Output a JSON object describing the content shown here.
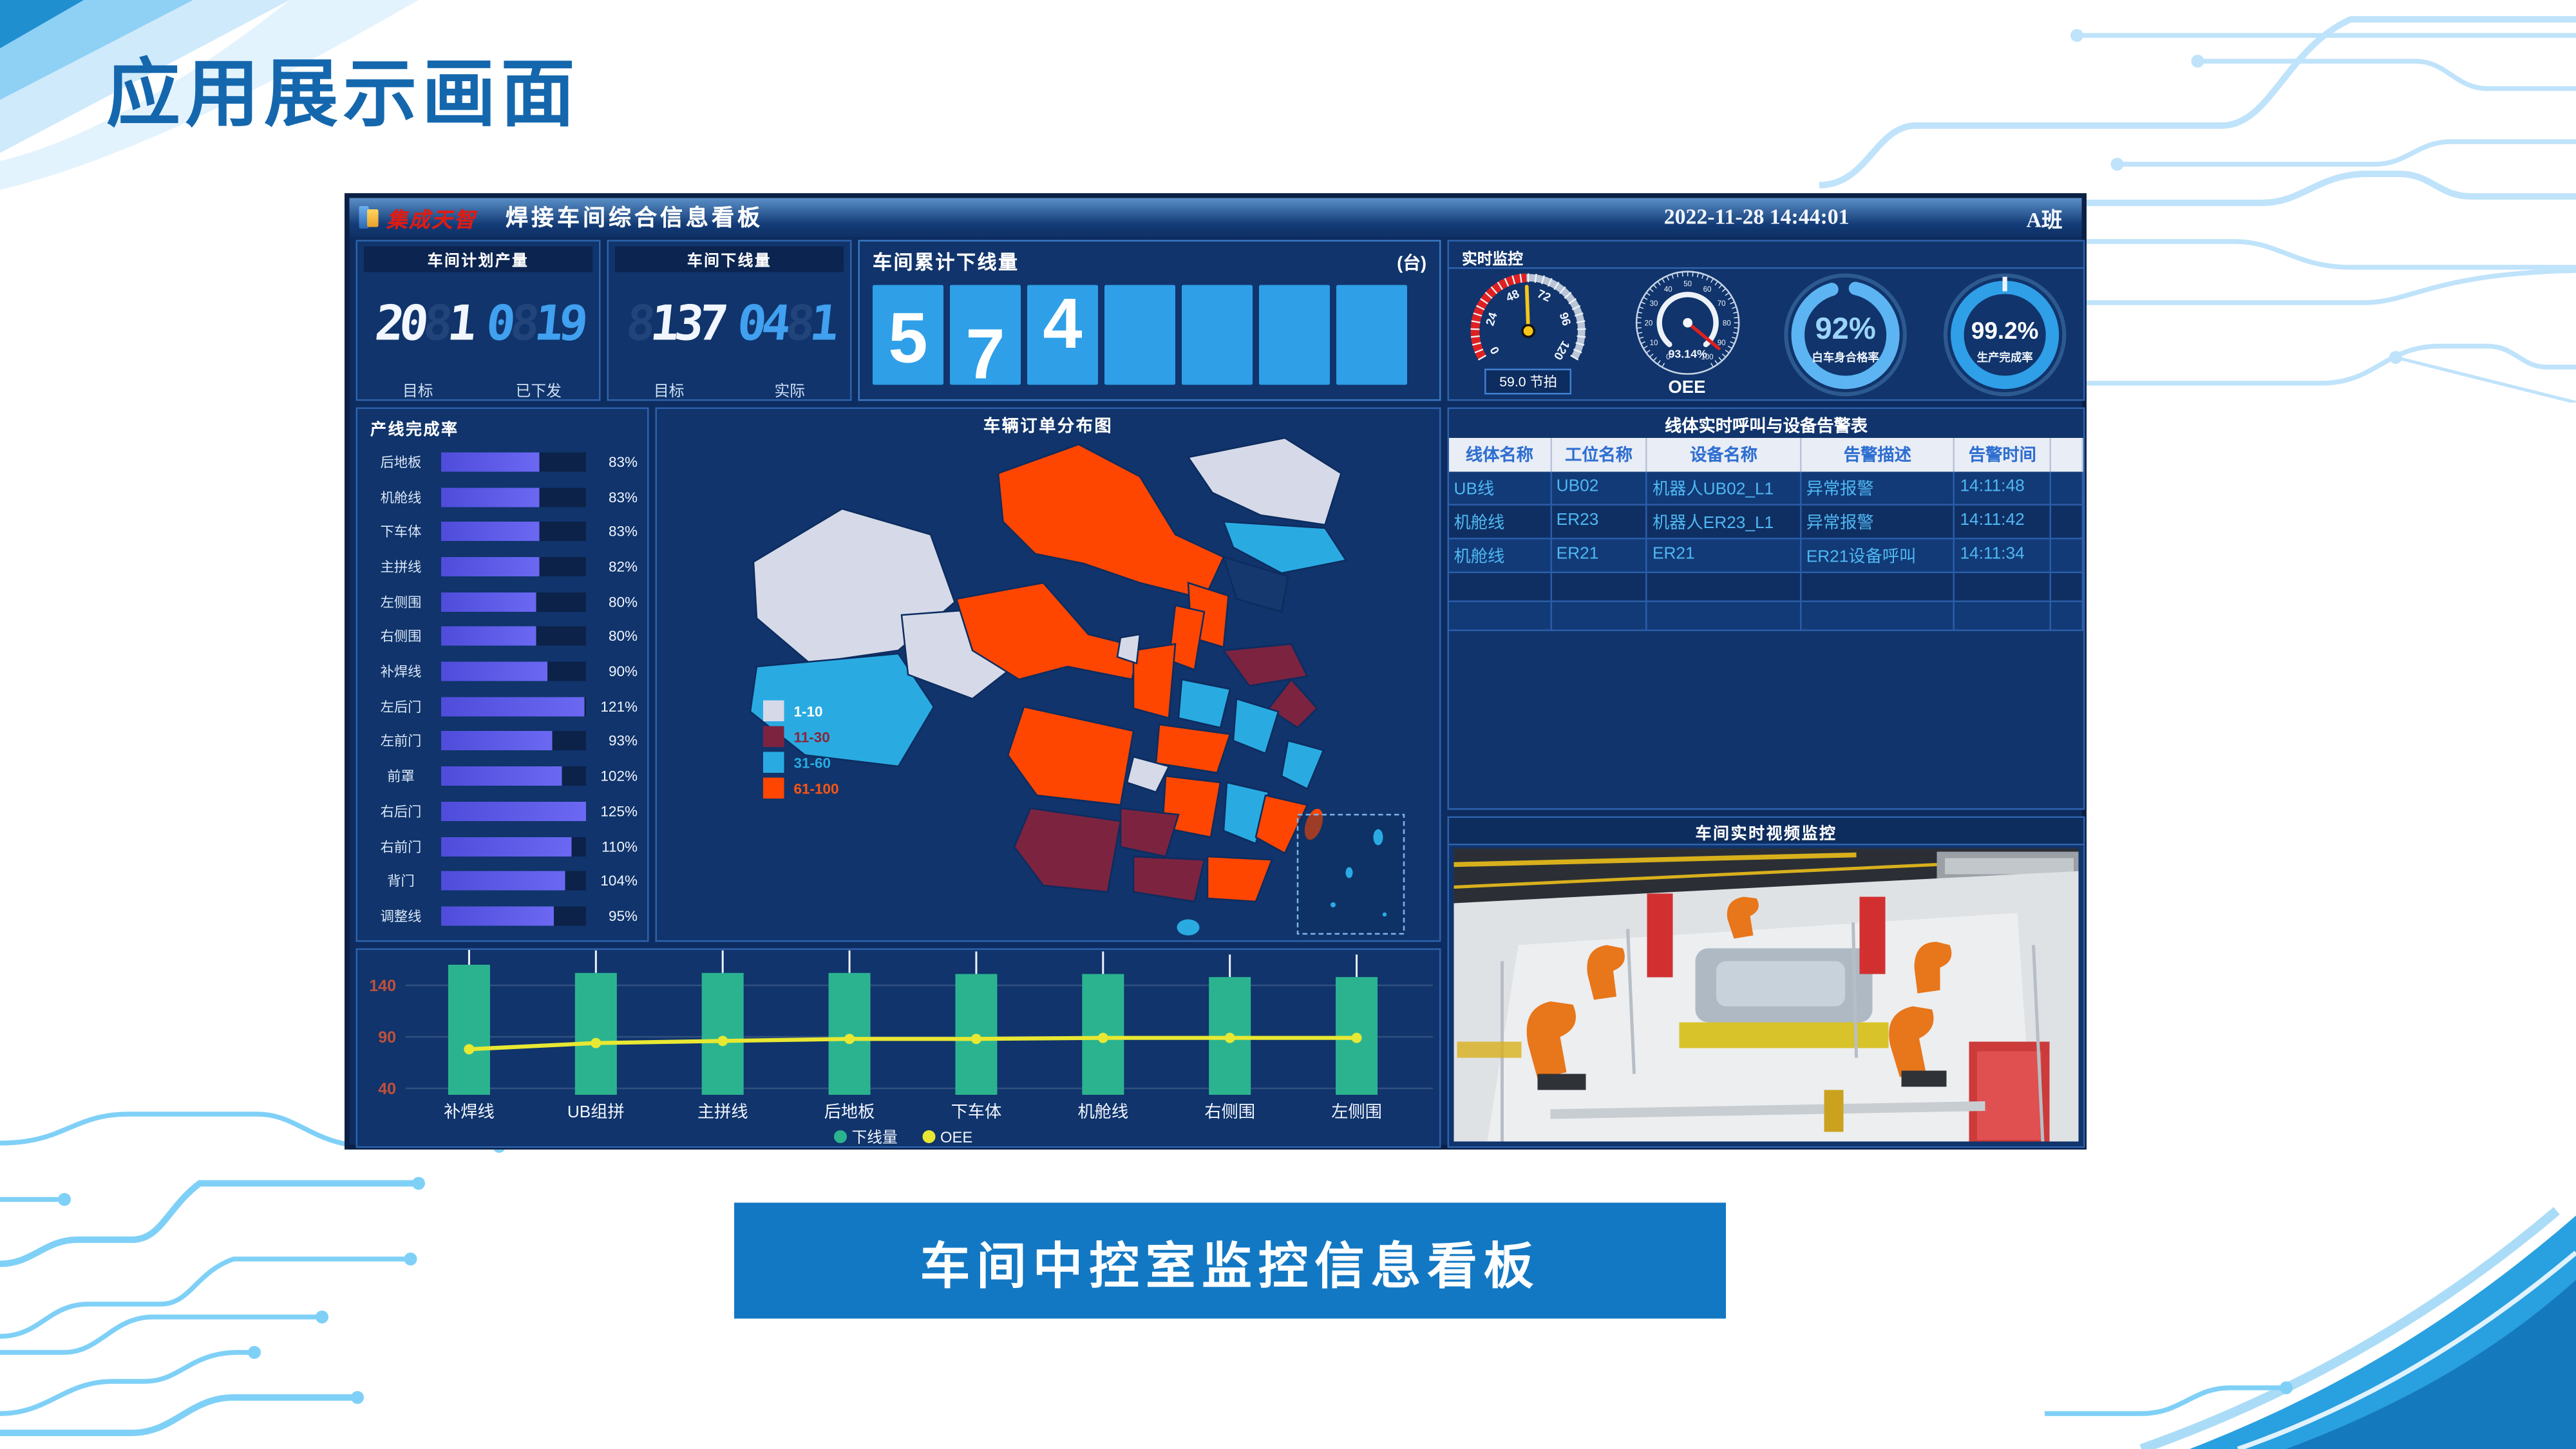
{
  "slide": {
    "title": "应用展示画面",
    "caption": "车间中控室监控信息看板"
  },
  "header": {
    "logo_text": "集成天智",
    "title": "焊接车间综合信息看板",
    "datetime": "2022-11-28 14:44:01",
    "shift": "A班"
  },
  "plan_panel": {
    "title": "车间计划产量",
    "labels": [
      "目标",
      "已下发"
    ],
    "digits": [
      {
        "c": "2",
        "s": "w"
      },
      {
        "c": "0",
        "s": "w"
      },
      {
        "c": "8",
        "s": "g"
      },
      {
        "c": "1",
        "s": "w"
      },
      {
        "c": "0",
        "s": "b"
      },
      {
        "c": "8",
        "s": "g"
      },
      {
        "c": "1",
        "s": "b"
      },
      {
        "c": "9",
        "s": "b"
      }
    ]
  },
  "offline_panel": {
    "title": "车间下线量",
    "labels": [
      "目标",
      "实际"
    ],
    "digits": [
      {
        "c": "8",
        "s": "g"
      },
      {
        "c": "1",
        "s": "w"
      },
      {
        "c": "3",
        "s": "w"
      },
      {
        "c": "7",
        "s": "w"
      },
      {
        "c": "0",
        "s": "b"
      },
      {
        "c": "4",
        "s": "b"
      },
      {
        "c": "8",
        "s": "g"
      },
      {
        "c": "1",
        "s": "b"
      }
    ]
  },
  "total_panel": {
    "title": "车间累计下线量",
    "unit": "(台)",
    "cells": [
      "5",
      "7",
      "4",
      "",
      "",
      "",
      ""
    ]
  },
  "monitor_panel": {
    "title": "实时监控",
    "takt_gauge": {
      "ticks": [
        0,
        24,
        48,
        72,
        96,
        120
      ],
      "max": 120,
      "value": 59,
      "value_label": "59.0",
      "unit": "节拍"
    },
    "oee_gauge": {
      "ticks": [
        0,
        10,
        20,
        30,
        40,
        50,
        60,
        70,
        80,
        90,
        100
      ],
      "max": 100,
      "value": 93.14,
      "value_label": "93.14%",
      "label": "OEE"
    },
    "quality_ring": {
      "pct": 92,
      "value_label": "92%",
      "label": "白车身合格率"
    },
    "completion_ring": {
      "pct": 99.2,
      "value_label": "99.2%",
      "label": "生产完成率"
    }
  },
  "line_completion": {
    "title": "产线完成率",
    "rows": [
      {
        "label": "后地板",
        "pct": 83,
        "value": "83%"
      },
      {
        "label": "机舱线",
        "pct": 83,
        "value": "83%"
      },
      {
        "label": "下车体",
        "pct": 83,
        "value": "83%"
      },
      {
        "label": "主拼线",
        "pct": 82,
        "value": "82%"
      },
      {
        "label": "左侧围",
        "pct": 80,
        "value": "80%"
      },
      {
        "label": "右侧围",
        "pct": 80,
        "value": "80%"
      },
      {
        "label": "补焊线",
        "pct": 90,
        "value": "90%"
      },
      {
        "label": "左后门",
        "pct": 121,
        "value": "121%"
      },
      {
        "label": "左前门",
        "pct": 93,
        "value": "93%"
      },
      {
        "label": "前罩",
        "pct": 102,
        "value": "102%"
      },
      {
        "label": "右后门",
        "pct": 125,
        "value": "125%"
      },
      {
        "label": "右前门",
        "pct": 110,
        "value": "110%"
      },
      {
        "label": "背门",
        "pct": 104,
        "value": "104%"
      },
      {
        "label": "调整线",
        "pct": 95,
        "value": "95%"
      }
    ]
  },
  "map_panel": {
    "title": "车辆订单分布图",
    "legend": [
      {
        "label": "1-10",
        "key": "low",
        "text_color": "#ffffff"
      },
      {
        "label": "11-30",
        "key": "midlow",
        "text_color": "#8b2439"
      },
      {
        "label": "31-60",
        "key": "mid",
        "text_color": "#29abe2"
      },
      {
        "label": "61-100",
        "key": "high",
        "text_color": "#ff5510"
      }
    ],
    "colors": {
      "low": "#d6dae8",
      "midlow": "#7c2340",
      "mid": "#29abe2",
      "high": "#ff4600",
      "dark": "#15386f",
      "border": "#0d2c5f"
    }
  },
  "alarm_panel": {
    "title": "线体实时呼叫与设备告警表",
    "columns": [
      "线体名称",
      "工位名称",
      "设备名称",
      "告警描述",
      "告警时间"
    ],
    "rows": [
      [
        "UB线",
        "UB02",
        "机器人UB02_L1",
        "异常报警",
        "14:11:48"
      ],
      [
        "机舱线",
        "ER23",
        "机器人ER23_L1",
        "异常报警",
        "14:11:42"
      ],
      [
        "机舱线",
        "ER21",
        "ER21",
        "ER21设备呼叫",
        "14:11:34"
      ]
    ],
    "empty_rows": 2
  },
  "video_panel": {
    "title": "车间实时视频监控"
  },
  "bottom_chart": {
    "legend": [
      {
        "name": "下线量",
        "color": "#2bb390"
      },
      {
        "name": "OEE",
        "color": "#e8e832"
      }
    ]
  },
  "chart_data": [
    {
      "type": "bar",
      "orientation": "horizontal",
      "title": "产线完成率",
      "categories": [
        "后地板",
        "机舱线",
        "下车体",
        "主拼线",
        "左侧围",
        "右侧围",
        "补焊线",
        "左后门",
        "左前门",
        "前罩",
        "右后门",
        "右前门",
        "背门",
        "调整线"
      ],
      "values": [
        83,
        83,
        83,
        82,
        80,
        80,
        90,
        121,
        93,
        102,
        125,
        110,
        104,
        95
      ],
      "unit": "%"
    },
    {
      "type": "bar+line",
      "title": "产线下线量与OEE",
      "categories": [
        "补焊线",
        "UB组拼",
        "主拼线",
        "后地板",
        "下车体",
        "机舱线",
        "右侧围",
        "左侧围"
      ],
      "series": [
        {
          "name": "下线量",
          "type": "bar",
          "values": [
            160,
            152,
            152,
            152,
            151,
            151,
            148,
            148
          ]
        },
        {
          "name": "OEE",
          "type": "line",
          "values": [
            78,
            84,
            86,
            88,
            88,
            89,
            89,
            89
          ]
        }
      ],
      "yticks": [
        40,
        90,
        140
      ],
      "legend_position": "bottom"
    },
    {
      "type": "heatmap",
      "subtype": "choropleth",
      "title": "车辆订单分布图",
      "legend_bins": [
        "1-10",
        "11-30",
        "31-60",
        "61-100"
      ]
    },
    {
      "type": "gauge",
      "label": "节拍",
      "value": 59.0,
      "range": [
        0,
        120
      ]
    },
    {
      "type": "gauge",
      "label": "OEE",
      "value": 93.14,
      "range": [
        0,
        100
      ]
    },
    {
      "type": "pie",
      "subtype": "donut",
      "label": "白车身合格率",
      "value": 92
    },
    {
      "type": "pie",
      "subtype": "donut",
      "label": "生产完成率",
      "value": 99.2
    }
  ]
}
